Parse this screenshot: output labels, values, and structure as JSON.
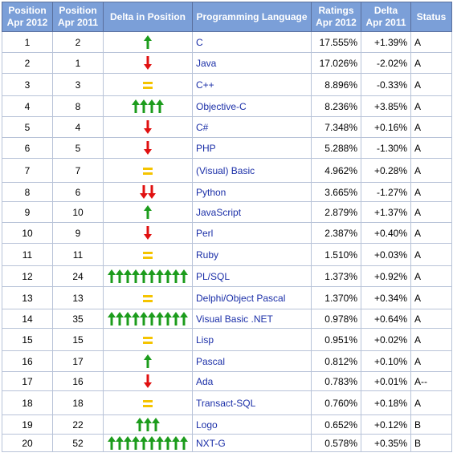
{
  "headers": {
    "pos2012": [
      "Position",
      "Apr 2012"
    ],
    "pos2011": [
      "Position",
      "Apr 2011"
    ],
    "delta_pos": "Delta in Position",
    "language": "Programming Language",
    "ratings": [
      "Ratings",
      "Apr 2012"
    ],
    "delta": [
      "Delta",
      "Apr 2011"
    ],
    "status": "Status"
  },
  "colors": {
    "header_bg": "#7b9fd8",
    "up_arrow": "#1c9c1c",
    "down_arrow": "#e01010",
    "equal_sign": "#f5c400",
    "link_text": "#1b2fa8"
  },
  "rows": [
    {
      "pos2012": "1",
      "pos2011": "2",
      "delta_kind": "up",
      "delta_count": 1,
      "language": "C",
      "rating": "17.555%",
      "delta": "+1.39%",
      "status": "A"
    },
    {
      "pos2012": "2",
      "pos2011": "1",
      "delta_kind": "down",
      "delta_count": 1,
      "language": "Java",
      "rating": "17.026%",
      "delta": "-2.02%",
      "status": "A"
    },
    {
      "pos2012": "3",
      "pos2011": "3",
      "delta_kind": "equal",
      "delta_count": 1,
      "language": "C++",
      "rating": "8.896%",
      "delta": "-0.33%",
      "status": "A"
    },
    {
      "pos2012": "4",
      "pos2011": "8",
      "delta_kind": "up",
      "delta_count": 4,
      "language": "Objective-C",
      "rating": "8.236%",
      "delta": "+3.85%",
      "status": "A"
    },
    {
      "pos2012": "5",
      "pos2011": "4",
      "delta_kind": "down",
      "delta_count": 1,
      "language": "C#",
      "rating": "7.348%",
      "delta": "+0.16%",
      "status": "A"
    },
    {
      "pos2012": "6",
      "pos2011": "5",
      "delta_kind": "down",
      "delta_count": 1,
      "language": "PHP",
      "rating": "5.288%",
      "delta": "-1.30%",
      "status": "A"
    },
    {
      "pos2012": "7",
      "pos2011": "7",
      "delta_kind": "equal",
      "delta_count": 1,
      "language": "(Visual) Basic",
      "rating": "4.962%",
      "delta": "+0.28%",
      "status": "A"
    },
    {
      "pos2012": "8",
      "pos2011": "6",
      "delta_kind": "down",
      "delta_count": 2,
      "language": "Python",
      "rating": "3.665%",
      "delta": "-1.27%",
      "status": "A"
    },
    {
      "pos2012": "9",
      "pos2011": "10",
      "delta_kind": "up",
      "delta_count": 1,
      "language": "JavaScript",
      "rating": "2.879%",
      "delta": "+1.37%",
      "status": "A"
    },
    {
      "pos2012": "10",
      "pos2011": "9",
      "delta_kind": "down",
      "delta_count": 1,
      "language": "Perl",
      "rating": "2.387%",
      "delta": "+0.40%",
      "status": "A"
    },
    {
      "pos2012": "11",
      "pos2011": "11",
      "delta_kind": "equal",
      "delta_count": 1,
      "language": "Ruby",
      "rating": "1.510%",
      "delta": "+0.03%",
      "status": "A"
    },
    {
      "pos2012": "12",
      "pos2011": "24",
      "delta_kind": "up",
      "delta_count": 10,
      "language": "PL/SQL",
      "rating": "1.373%",
      "delta": "+0.92%",
      "status": "A"
    },
    {
      "pos2012": "13",
      "pos2011": "13",
      "delta_kind": "equal",
      "delta_count": 1,
      "language": "Delphi/Object Pascal",
      "rating": "1.370%",
      "delta": "+0.34%",
      "status": "A"
    },
    {
      "pos2012": "14",
      "pos2011": "35",
      "delta_kind": "up",
      "delta_count": 10,
      "language": "Visual Basic .NET",
      "rating": "0.978%",
      "delta": "+0.64%",
      "status": "A"
    },
    {
      "pos2012": "15",
      "pos2011": "15",
      "delta_kind": "equal",
      "delta_count": 1,
      "language": "Lisp",
      "rating": "0.951%",
      "delta": "+0.02%",
      "status": "A"
    },
    {
      "pos2012": "16",
      "pos2011": "17",
      "delta_kind": "up",
      "delta_count": 1,
      "language": "Pascal",
      "rating": "0.812%",
      "delta": "+0.10%",
      "status": "A"
    },
    {
      "pos2012": "17",
      "pos2011": "16",
      "delta_kind": "down",
      "delta_count": 1,
      "language": "Ada",
      "rating": "0.783%",
      "delta": "+0.01%",
      "status": "A--"
    },
    {
      "pos2012": "18",
      "pos2011": "18",
      "delta_kind": "equal",
      "delta_count": 1,
      "language": "Transact-SQL",
      "rating": "0.760%",
      "delta": "+0.18%",
      "status": "A"
    },
    {
      "pos2012": "19",
      "pos2011": "22",
      "delta_kind": "up",
      "delta_count": 3,
      "language": "Logo",
      "rating": "0.652%",
      "delta": "+0.12%",
      "status": "B"
    },
    {
      "pos2012": "20",
      "pos2011": "52",
      "delta_kind": "up",
      "delta_count": 10,
      "language": "NXT-G",
      "rating": "0.578%",
      "delta": "+0.35%",
      "status": "B"
    }
  ]
}
